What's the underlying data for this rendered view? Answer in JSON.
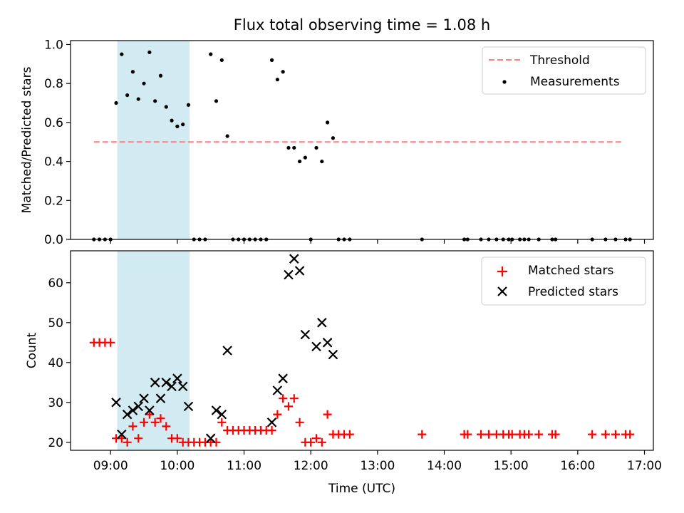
{
  "title": "Flux total observing time = 1.08 h",
  "colors": {
    "shade": "#add8e6",
    "threshold": "#ff7f7f",
    "matched": "#ff0000",
    "predicted": "#000000",
    "measurement": "#000000"
  },
  "chart_data": [
    {
      "type": "scatter",
      "ylabel": "Matched/Predicted stars",
      "xlim": [
        "08:24",
        "17:08"
      ],
      "ylim": [
        0,
        1.02
      ],
      "yticks": [
        0.0,
        0.2,
        0.4,
        0.6,
        0.8,
        1.0
      ],
      "ytick_labels": [
        "0.0",
        "0.2",
        "0.4",
        "0.6",
        "0.8",
        "1.0"
      ],
      "grid": false,
      "legend": "top-right",
      "shaded_span": [
        "09:06",
        "10:11"
      ],
      "threshold": {
        "name": "Threshold",
        "x": [
          "08:45",
          "16:40"
        ],
        "y": 0.5
      },
      "series": [
        {
          "name": "Measurements",
          "x": [
            "08:45",
            "08:50",
            "08:55",
            "09:00",
            "09:05",
            "09:10",
            "09:15",
            "09:20",
            "09:25",
            "09:30",
            "09:35",
            "09:40",
            "09:45",
            "09:50",
            "09:55",
            "10:00",
            "10:05",
            "10:10",
            "10:15",
            "10:20",
            "10:25",
            "10:30",
            "10:35",
            "10:40",
            "10:45",
            "10:50",
            "10:55",
            "11:00",
            "11:05",
            "11:10",
            "11:15",
            "11:20",
            "11:25",
            "11:30",
            "11:35",
            "11:40",
            "11:45",
            "11:50",
            "11:55",
            "12:00",
            "12:05",
            "12:10",
            "12:15",
            "12:20",
            "12:25",
            "12:30",
            "12:35",
            "13:40",
            "14:18",
            "14:21",
            "14:33",
            "14:40",
            "14:47",
            "14:53",
            "14:58",
            "15:01",
            "15:08",
            "15:12",
            "15:16",
            "15:25",
            "15:37",
            "15:40",
            "16:13",
            "16:25",
            "16:34",
            "16:43",
            "16:47"
          ],
          "y": [
            0,
            0,
            0,
            0,
            0.7,
            0.95,
            0.74,
            0.86,
            0.72,
            0.8,
            0.96,
            0.71,
            0.84,
            0.68,
            0.61,
            0.58,
            0.59,
            0.69,
            0,
            0,
            0,
            0.95,
            0.71,
            0.92,
            0.53,
            0,
            0,
            0,
            0,
            0,
            0,
            0,
            0.92,
            0.82,
            0.86,
            0.47,
            0.47,
            0.4,
            0.42,
            0,
            0.47,
            0.4,
            0.6,
            0.52,
            0,
            0,
            0,
            0,
            0,
            0,
            0,
            0,
            0,
            0,
            0,
            0,
            0,
            0,
            0,
            0,
            0,
            0,
            0,
            0,
            0,
            0,
            0
          ]
        }
      ]
    },
    {
      "type": "scatter",
      "xlabel": "Time (UTC)",
      "ylabel": "Count",
      "xlim": [
        "08:24",
        "17:08"
      ],
      "ylim": [
        18,
        68
      ],
      "xticks": [
        "09:00",
        "10:00",
        "11:00",
        "12:00",
        "13:00",
        "14:00",
        "15:00",
        "16:00",
        "17:00"
      ],
      "yticks": [
        20,
        30,
        40,
        50,
        60
      ],
      "ytick_labels": [
        "20",
        "30",
        "40",
        "50",
        "60"
      ],
      "grid": false,
      "legend": "top-right",
      "shaded_span": [
        "09:06",
        "10:11"
      ],
      "series": [
        {
          "name": "Matched stars",
          "marker": "plus",
          "x": [
            "08:45",
            "08:50",
            "08:55",
            "09:00",
            "09:05",
            "09:10",
            "09:15",
            "09:20",
            "09:25",
            "09:30",
            "09:35",
            "09:40",
            "09:45",
            "09:50",
            "09:55",
            "10:00",
            "10:05",
            "10:10",
            "10:15",
            "10:20",
            "10:25",
            "10:30",
            "10:35",
            "10:40",
            "10:45",
            "10:50",
            "10:55",
            "11:00",
            "11:05",
            "11:10",
            "11:15",
            "11:20",
            "11:25",
            "11:30",
            "11:35",
            "11:40",
            "11:45",
            "11:50",
            "11:55",
            "12:00",
            "12:05",
            "12:10",
            "12:15",
            "12:20",
            "12:25",
            "12:30",
            "12:35",
            "13:40",
            "14:18",
            "14:21",
            "14:33",
            "14:40",
            "14:47",
            "14:53",
            "14:58",
            "15:01",
            "15:08",
            "15:12",
            "15:16",
            "15:25",
            "15:37",
            "15:40",
            "16:13",
            "16:25",
            "16:34",
            "16:43",
            "16:47"
          ],
          "y": [
            45,
            45,
            45,
            45,
            21,
            21,
            20,
            24,
            21,
            25,
            27,
            25,
            26,
            24,
            21,
            21,
            20,
            20,
            20,
            20,
            20,
            20,
            20,
            25,
            23,
            23,
            23,
            23,
            23,
            23,
            23,
            23,
            23,
            27,
            31,
            29,
            31,
            25,
            20,
            20,
            21,
            20,
            27,
            22,
            22,
            22,
            22,
            22,
            22,
            22,
            22,
            22,
            22,
            22,
            22,
            22,
            22,
            22,
            22,
            22,
            22,
            22,
            22,
            22,
            22,
            22,
            22
          ]
        },
        {
          "name": "Predicted stars",
          "marker": "x",
          "x": [
            "09:05",
            "09:10",
            "09:15",
            "09:20",
            "09:25",
            "09:30",
            "09:35",
            "09:40",
            "09:45",
            "09:50",
            "09:55",
            "10:00",
            "10:05",
            "10:10",
            "10:30",
            "10:35",
            "10:40",
            "10:45",
            "11:25",
            "11:30",
            "11:35",
            "11:40",
            "11:45",
            "11:50",
            "11:55",
            "12:05",
            "12:10",
            "12:15",
            "12:20"
          ],
          "y": [
            30,
            22,
            27,
            28,
            29,
            31,
            28,
            35,
            31,
            35,
            34,
            36,
            34,
            29,
            21,
            28,
            27,
            43,
            25,
            33,
            36,
            62,
            66,
            63,
            47,
            44,
            50,
            45,
            42
          ]
        }
      ]
    }
  ]
}
